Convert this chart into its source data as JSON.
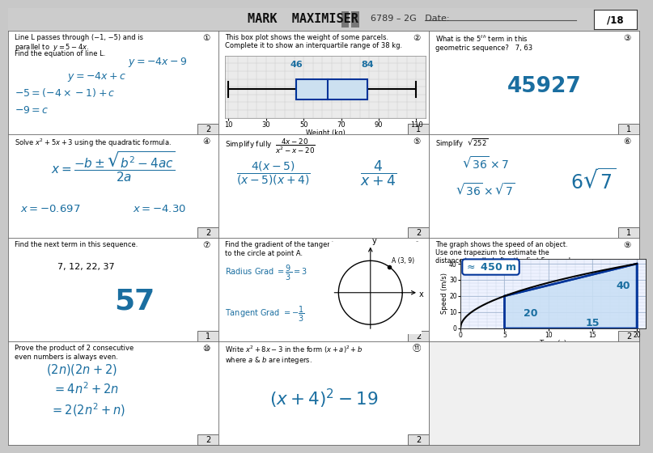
{
  "title": "MARK  MAXIMISER",
  "header_right": "6789 – 2G   Date:",
  "header_score": "/18",
  "teal": "#1a6ea0",
  "dark_blue": "#003399",
  "header_bg": "#c8c8c8",
  "cell_bg": "#ffffff",
  "q1_lines": [
    "Line L passes through (−1, −5) and is",
    "parallel to  $y = 5 - 4x$.",
    "Find the equation of line L."
  ],
  "q1_ans": "$y = -4x - 9$",
  "q1_work": [
    "$y = -4x + c$",
    "$-5 = (-4 \\times -1) + c$",
    "$-9 = c$"
  ],
  "q2_lines": [
    "This box plot shows the weight of some parcels.",
    "Complete it to show an interquartile range of 38 kg."
  ],
  "q3_lines": [
    "What is the 5$^{th}$ term in this",
    "geometric sequence?   7, 63"
  ],
  "q3_ans": "45927",
  "q4_line": "Solve $x^2 + 5x + 3$ using the quadratic formula.",
  "q5_line": "Simplify fully",
  "q6_line": "Simplify  $\\sqrt{252}$",
  "q7_line": "Find the next term in this sequence.",
  "q7_seq": "7, 12, 22, 37",
  "q7_ans": "57",
  "q8_lines": [
    "Find the gradient of the tangent",
    "to the circle at point A."
  ],
  "q9_lines": [
    "The graph shows the speed of an object.",
    "Use one trapezium to estimate the",
    "distance travelled after the first 5 seconds."
  ],
  "q10_lines": [
    "Prove the product of 2 consecutive",
    "even numbers is always even."
  ],
  "q11_lines": [
    "Write $x^2 + 8x - 3$ in the form $(x+a)^2 + b$",
    "where $a$ & $b$ are integers."
  ]
}
